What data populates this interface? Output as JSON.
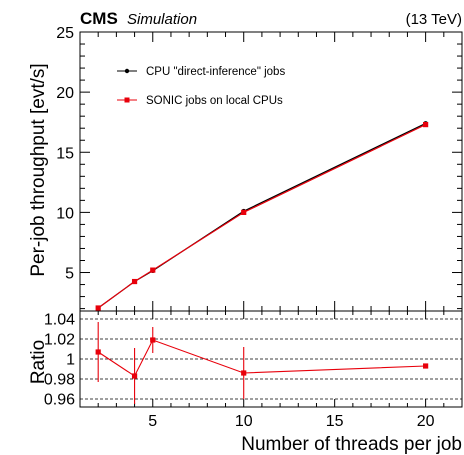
{
  "header": {
    "experiment": "CMS",
    "label": "Simulation",
    "energy": "(13 TeV)"
  },
  "colors": {
    "cpu": "#000000",
    "sonic": "#e8000b",
    "grid": "#000000"
  },
  "chart_data": [
    {
      "type": "line",
      "panel": "main",
      "xlabel": "",
      "ylabel": "Per-job throughput [evt/s]",
      "xlim": [
        1,
        22
      ],
      "ylim": [
        1.8,
        25
      ],
      "yticks": [
        5,
        10,
        15,
        20,
        25
      ],
      "legend_position": "top-left",
      "series": [
        {
          "name": "CPU \"direct-inference\" jobs",
          "marker": "circle",
          "color": "#000000",
          "x": [
            2,
            4,
            5,
            10,
            20
          ],
          "y": [
            2.05,
            4.25,
            5.15,
            10.1,
            17.4
          ]
        },
        {
          "name": "SONIC jobs on local CPUs",
          "marker": "square",
          "color": "#e8000b",
          "x": [
            2,
            4,
            5,
            10,
            20
          ],
          "y": [
            2.05,
            4.25,
            5.2,
            10.0,
            17.3
          ]
        }
      ]
    },
    {
      "type": "line",
      "panel": "ratio",
      "xlabel": "Number of threads per job",
      "ylabel": "Ratio",
      "xlim": [
        1,
        22
      ],
      "ylim": [
        0.952,
        1.048
      ],
      "xticks": [
        5,
        10,
        15,
        20
      ],
      "yticks": [
        0.96,
        0.98,
        1,
        1.02,
        1.04
      ],
      "ytick_labels": [
        "0.96",
        "0.98",
        "1",
        "1.02",
        "1.04"
      ],
      "grid": "horizontal dashed",
      "series": [
        {
          "name": "",
          "marker": "square",
          "color": "#e8000b",
          "x": [
            2,
            4,
            5,
            10,
            20
          ],
          "y": [
            1.007,
            0.983,
            1.019,
            0.986,
            0.993
          ],
          "yerr": [
            0.03,
            0.028,
            0.013,
            0.026,
            0
          ]
        }
      ]
    }
  ]
}
